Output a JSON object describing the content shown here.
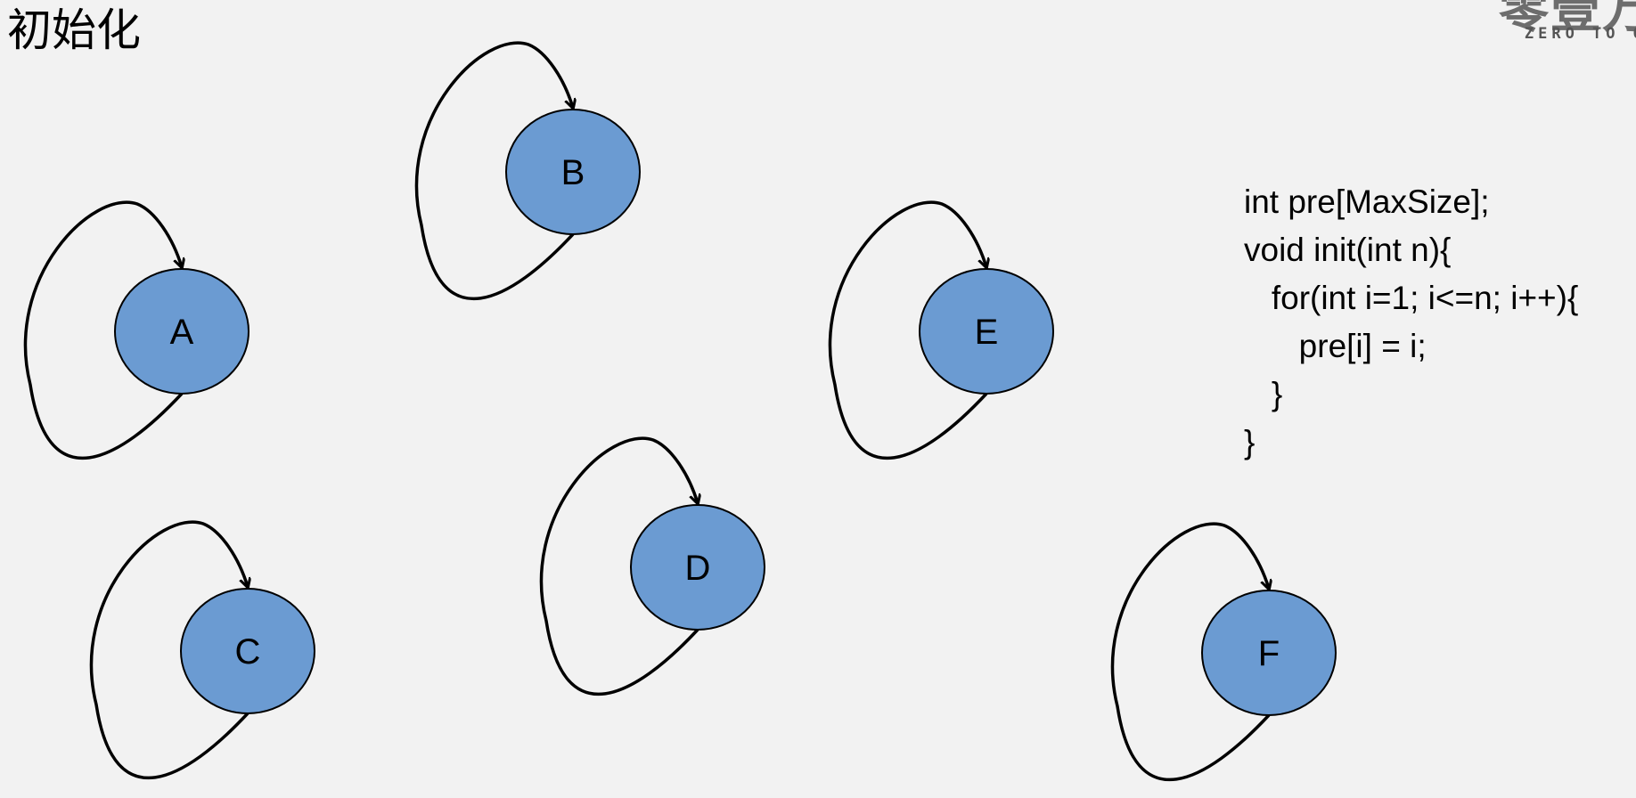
{
  "title": "初始化",
  "logo": {
    "text": "零壹万",
    "subtitle": "ZERO TO O"
  },
  "nodes": [
    {
      "id": "A",
      "label": "A"
    },
    {
      "id": "B",
      "label": "B"
    },
    {
      "id": "C",
      "label": "C"
    },
    {
      "id": "D",
      "label": "D"
    },
    {
      "id": "E",
      "label": "E"
    },
    {
      "id": "F",
      "label": "F"
    }
  ],
  "colors": {
    "node_fill": "#6b9bd2",
    "node_stroke": "#000000",
    "edge": "#000000",
    "background": "#f2f2f2"
  },
  "code": {
    "lines": [
      "int pre[MaxSize];",
      "void init(int n){",
      "   for(int i=1; i<=n; i++){",
      "      pre[i] = i;",
      "   }",
      "}"
    ]
  }
}
